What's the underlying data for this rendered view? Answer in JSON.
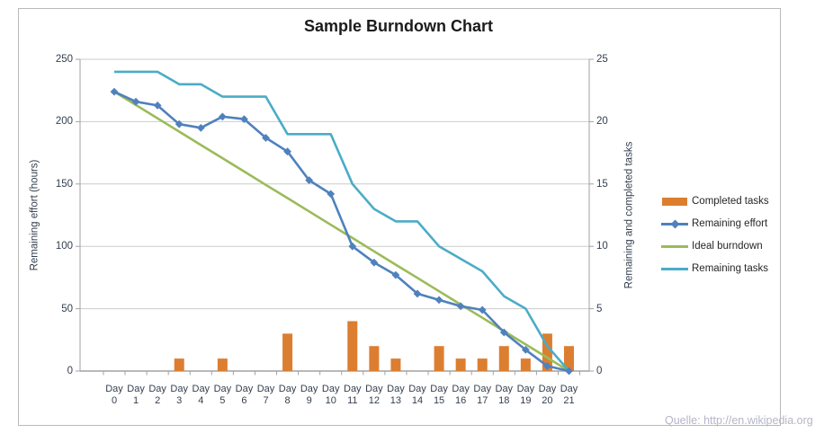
{
  "chart_data": {
    "type": "combo-bar-line",
    "title": "Sample Burndown Chart",
    "ylabel_left": "Remaining effort (hours)",
    "ylabel_right": "Remaining and completed tasks",
    "categories": [
      "Day 0",
      "Day 1",
      "Day 2",
      "Day 3",
      "Day 4",
      "Day 5",
      "Day 6",
      "Day 7",
      "Day 8",
      "Day 9",
      "Day 10",
      "Day 11",
      "Day 12",
      "Day 13",
      "Day 14",
      "Day 15",
      "Day 16",
      "Day 17",
      "Day 18",
      "Day 19",
      "Day 20",
      "Day 21"
    ],
    "ylim_left": [
      0,
      250
    ],
    "ylim_right": [
      0,
      25
    ],
    "yticks_left": [
      0,
      50,
      100,
      150,
      200,
      250
    ],
    "yticks_right": [
      0,
      5,
      10,
      15,
      20,
      25
    ],
    "grid": true,
    "legend_position": "right",
    "series": [
      {
        "name": "Completed tasks",
        "type": "bar",
        "axis": "right",
        "color": "#DC7E30",
        "values": [
          0,
          0,
          0,
          1,
          0,
          1,
          0,
          0,
          3,
          0,
          0,
          4,
          2,
          1,
          0,
          2,
          1,
          1,
          2,
          1,
          3,
          2
        ]
      },
      {
        "name": "Remaining effort",
        "type": "line-diamond",
        "axis": "left",
        "color": "#4F81BD",
        "values": [
          224,
          216,
          213,
          198,
          195,
          204,
          202,
          187,
          176,
          153,
          142,
          100,
          87,
          77,
          62,
          57,
          52,
          49,
          31,
          17,
          4,
          0
        ]
      },
      {
        "name": "Ideal burndown",
        "type": "line",
        "axis": "left",
        "color": "#9BBB59",
        "values": [
          224,
          213.3,
          202.7,
          192,
          181.3,
          170.7,
          160,
          149.3,
          138.7,
          128,
          117.3,
          106.7,
          96,
          85.3,
          74.7,
          64,
          53.3,
          42.7,
          32,
          21.3,
          10.7,
          0
        ]
      },
      {
        "name": "Remaining tasks",
        "type": "line",
        "axis": "right",
        "color": "#4BACC6",
        "values": [
          24,
          24,
          24,
          23,
          23,
          22,
          22,
          22,
          19,
          19,
          19,
          15,
          13,
          12,
          12,
          10,
          9,
          8,
          6,
          5,
          2,
          0
        ]
      }
    ]
  },
  "source_note": "Quelle: http://en.wikipedia.org",
  "colors": {
    "gridline": "#cbcbcb",
    "axis": "#a2a2a2",
    "title_text": "#1b1b1b",
    "tick_text": "#333f4d",
    "legend_text": "#262626",
    "source_text": "#b5b5c9"
  }
}
